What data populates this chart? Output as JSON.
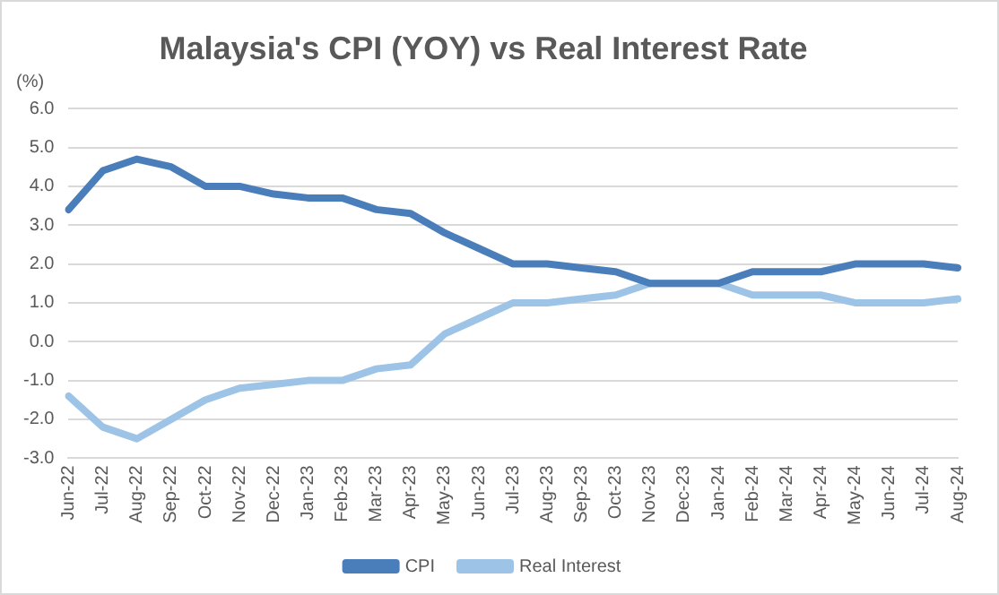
{
  "chart_data": {
    "type": "line",
    "title": "Malaysia's CPI (YOY) vs Real Interest Rate",
    "ylabel": "(%)",
    "categories": [
      "Jun-22",
      "Jul-22",
      "Aug-22",
      "Sep-22",
      "Oct-22",
      "Nov-22",
      "Dec-22",
      "Jan-23",
      "Feb-23",
      "Mar-23",
      "Apr-23",
      "May-23",
      "Jun-23",
      "Jul-23",
      "Aug-23",
      "Sep-23",
      "Oct-23",
      "Nov-23",
      "Dec-23",
      "Jan-24",
      "Feb-24",
      "Mar-24",
      "Apr-24",
      "May-24",
      "Jun-24",
      "Jul-24",
      "Aug-24"
    ],
    "series": [
      {
        "name": "CPI",
        "color": "#4a7ebb",
        "values": [
          3.4,
          4.4,
          4.7,
          4.5,
          4.0,
          4.0,
          3.8,
          3.7,
          3.7,
          3.4,
          3.3,
          2.8,
          2.4,
          2.0,
          2.0,
          1.9,
          1.8,
          1.5,
          1.5,
          1.5,
          1.8,
          1.8,
          1.8,
          2.0,
          2.0,
          2.0,
          1.9
        ]
      },
      {
        "name": "Real Interest",
        "color": "#9dc3e6",
        "values": [
          -1.4,
          -2.2,
          -2.5,
          -2.0,
          -1.5,
          -1.2,
          -1.1,
          -1.0,
          -1.0,
          -0.7,
          -0.6,
          0.2,
          0.6,
          1.0,
          1.0,
          1.1,
          1.2,
          1.5,
          1.5,
          1.5,
          1.2,
          1.2,
          1.2,
          1.0,
          1.0,
          1.0,
          1.1
        ]
      }
    ],
    "ylim": [
      -3,
      6
    ],
    "yticks": [
      {
        "value": -3,
        "label": "-3.0"
      },
      {
        "value": -2,
        "label": "-2.0"
      },
      {
        "value": -1,
        "label": "-1.0"
      },
      {
        "value": 0,
        "label": "0.0"
      },
      {
        "value": 1,
        "label": "1.0"
      },
      {
        "value": 2,
        "label": "2.0"
      },
      {
        "value": 3,
        "label": "3.0"
      },
      {
        "value": 4,
        "label": "4.0"
      },
      {
        "value": 5,
        "label": "5.0"
      },
      {
        "value": 6,
        "label": "6.0"
      }
    ],
    "grid": "y",
    "legend": "bottom",
    "marker": "none",
    "line_style": "solid"
  }
}
